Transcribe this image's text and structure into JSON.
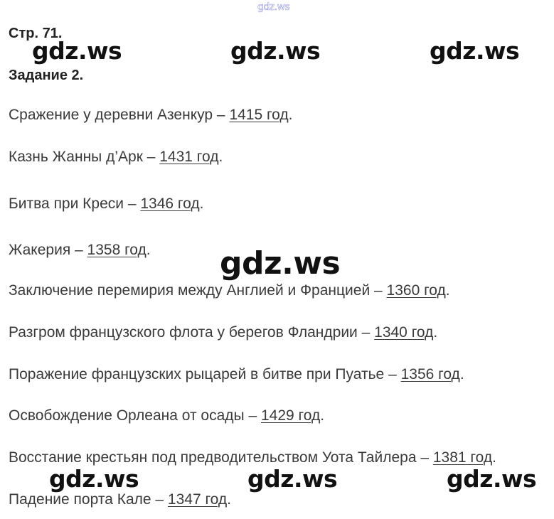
{
  "watermark": {
    "text": "gdz.ws",
    "color": "#4040d0"
  },
  "header": {
    "page": "Стр. 71.",
    "task": "Задание 2."
  },
  "items": [
    {
      "text": "Сражение у деревни Азенкур – ",
      "answer": "1415 год",
      "end": "."
    },
    {
      "text": "Казнь Жанны д’Арк – ",
      "answer": "1431 год",
      "end": "."
    },
    {
      "text": "Битва при Креси – ",
      "answer": "1346 год",
      "end": "."
    },
    {
      "text": "Жакерия – ",
      "answer": "1358 год",
      "end": "."
    },
    {
      "text": "Заключение перемирия между Англией и Францией – ",
      "answer": "1360 год",
      "end": "."
    },
    {
      "text": "Разгром французского флота у берегов Фландрии – ",
      "answer": "1340 год",
      "end": "."
    },
    {
      "text": "Поражение французских рыцарей в битве при Пуатье – ",
      "answer": "1356 год",
      "end": "."
    },
    {
      "text": "Освобождение Орлеана от осады – ",
      "answer": "1429 год",
      "end": "."
    },
    {
      "text": "Восстание крестьян под предводительством Уота Тайлера – ",
      "answer": "1381 год",
      "end": "."
    },
    {
      "text": "Падение порта Кале – ",
      "answer": "1347 год",
      "end": "."
    }
  ]
}
